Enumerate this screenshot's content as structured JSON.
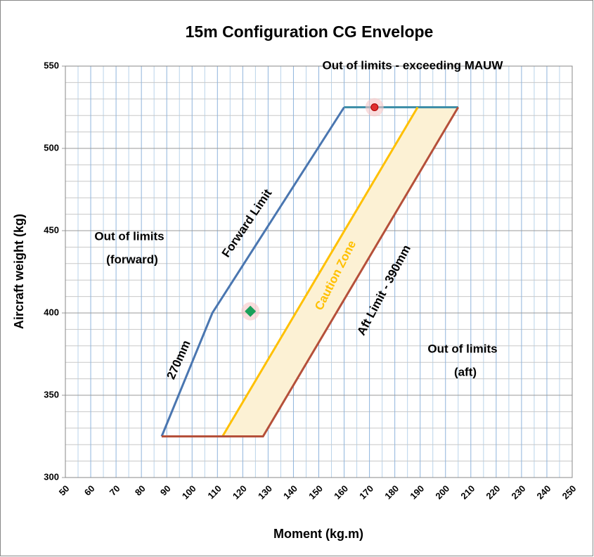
{
  "chart_data": {
    "type": "line",
    "title": "15m Configuration  CG Envelope",
    "x_label": "Moment (kg.m)",
    "y_label": "Aircraft weight (kg)",
    "xlim": [
      50,
      250
    ],
    "xticks": [
      50,
      60,
      70,
      80,
      90,
      100,
      110,
      120,
      130,
      140,
      150,
      160,
      170,
      180,
      190,
      200,
      210,
      220,
      230,
      240,
      250
    ],
    "ylim": [
      300,
      550
    ],
    "yticks": [
      300,
      350,
      400,
      450,
      500,
      550
    ],
    "grid": true,
    "series": [
      {
        "color": "#fcf1d4",
        "fill": true,
        "x": [
          112,
          189,
          205,
          128
        ],
        "values": [
          325,
          525,
          525,
          325
        ]
      },
      {
        "color": "#4a76b0",
        "x": [
          88,
          108,
          160
        ],
        "values": [
          325,
          400,
          525
        ]
      },
      {
        "color": "#3f8fa8",
        "x": [
          160,
          205
        ],
        "values": [
          525,
          525
        ]
      },
      {
        "color": "#ffc000",
        "x": [
          112,
          189
        ],
        "values": [
          325,
          525
        ]
      },
      {
        "color": "#b5503a",
        "x": [
          88,
          128,
          205
        ],
        "values": [
          325,
          325,
          525
        ]
      }
    ],
    "points": [
      {
        "color": "#1aa05a",
        "marker": "diamond",
        "x": 123,
        "y": 401
      },
      {
        "color": "#e03030",
        "marker": "circle",
        "x": 172,
        "y": 525
      }
    ],
    "annotations": [
      {
        "text": "Out of limits - exceeding MAUW",
        "color": "#000000"
      },
      {
        "text": "Out of limits",
        "color": "#000000"
      },
      {
        "text": "(forward)",
        "color": "#000000"
      },
      {
        "text": "Out of limits",
        "color": "#000000"
      },
      {
        "text": "(aft)",
        "color": "#000000"
      },
      {
        "text": "Forward Limit",
        "color": "#000000"
      },
      {
        "text": "Caution Zone",
        "color": "#ffc000"
      },
      {
        "text": "Aft Limit - 390mm",
        "color": "#000000"
      },
      {
        "text": "270mm",
        "color": "#000000"
      }
    ]
  }
}
